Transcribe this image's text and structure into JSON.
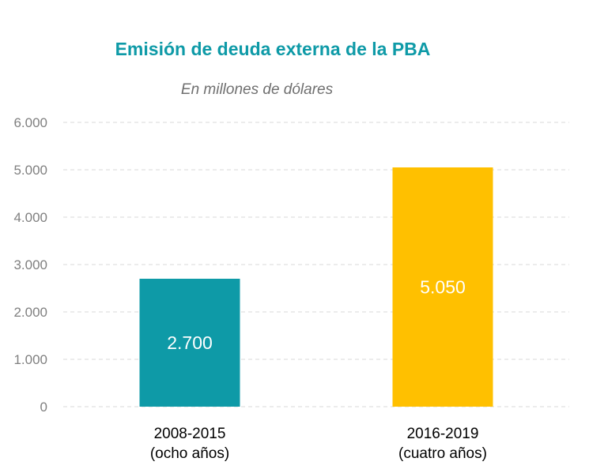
{
  "chart_data": {
    "type": "bar",
    "title": "Emisión de deuda externa de la PBA",
    "subtitle": "En millones de dólares",
    "categories": [
      [
        "2008-2015",
        "(ocho años)"
      ],
      [
        "2016-2019",
        "(cuatro años)"
      ]
    ],
    "values": [
      2700,
      5050
    ],
    "data_labels": [
      "2.700",
      "5.050"
    ],
    "colors": [
      "#0e9aa7",
      "#ffc000"
    ],
    "ylim": [
      0,
      6000
    ],
    "yticks": [
      0,
      1000,
      2000,
      3000,
      4000,
      5000,
      6000
    ],
    "ytick_labels": [
      "0",
      "1.000",
      "2.000",
      "3.000",
      "4.000",
      "5.000",
      "6.000"
    ],
    "grid": true,
    "xlabel": "",
    "ylabel": ""
  }
}
